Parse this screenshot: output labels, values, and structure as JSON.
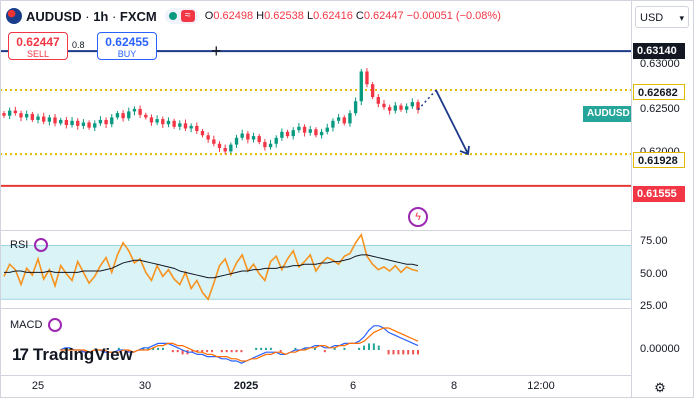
{
  "header": {
    "symbol": "AUDUSD",
    "interval": "1h",
    "exchange": "FXCM",
    "ohlc": {
      "o_label": "O",
      "o": "0.62498",
      "h_label": "H",
      "h": "0.62538",
      "l_label": "L",
      "l": "0.62416",
      "c_label": "C",
      "c": "0.62447",
      "change": "−0.00051 (−0.08%)"
    }
  },
  "trade": {
    "sell_price": "0.62447",
    "sell_label": "SELL",
    "buy_price": "0.62455",
    "buy_label": "BUY",
    "spread": "0.8"
  },
  "currency": "USD",
  "colors": {
    "up": "#089981",
    "down": "#f23645",
    "blue_line": "#1e3a8a",
    "gold": "#e5b800",
    "red_line": "#e53935",
    "axis_blue": "#2962ff",
    "teal_tag": "#26a69a",
    "rsi": "#f7931e",
    "macd": "#2962ff",
    "signal": "#ff6d00"
  },
  "price_axis": {
    "ticks": [
      "0.63000",
      "0.62500",
      "0.62000"
    ],
    "tags": [
      {
        "value": "0.63140",
        "kind": "line"
      },
      {
        "value": "0.62682",
        "kind": "gold"
      },
      {
        "value": "AUDUSD",
        "kind": "symbol"
      },
      {
        "value": "0.61928",
        "kind": "gold"
      },
      {
        "value": "0.61555",
        "kind": "red"
      }
    ]
  },
  "time_axis": {
    "ticks": [
      "25",
      "30",
      "2025",
      "6",
      "8",
      "12:00"
    ]
  },
  "rsi": {
    "label": "RSI",
    "ticks": [
      "75.00",
      "50.00",
      "25.00"
    ]
  },
  "macd": {
    "label": "MACD",
    "ticks": [
      "0.00000"
    ]
  },
  "brand": "TradingView",
  "chart_data": {
    "type": "candlestick",
    "symbol": "AUDUSD",
    "timeframe": "1h",
    "ylim": [
      0.615,
      0.6325
    ],
    "levels": [
      {
        "price": 0.6314,
        "style": "solid",
        "color": "#1e3a8a"
      },
      {
        "price": 0.62682,
        "style": "dotted",
        "color": "#e5b800"
      },
      {
        "price": 0.61928,
        "style": "dotted",
        "color": "#e5b800"
      },
      {
        "price": 0.61555,
        "style": "solid",
        "color": "#e53935"
      }
    ],
    "close_path": [
      0.6238,
      0.6244,
      0.6241,
      0.6236,
      0.624,
      0.6233,
      0.6237,
      0.6231,
      0.6236,
      0.6229,
      0.6233,
      0.6227,
      0.6232,
      0.6226,
      0.623,
      0.6224,
      0.6229,
      0.6233,
      0.6228,
      0.6236,
      0.6241,
      0.6235,
      0.6243,
      0.6246,
      0.6239,
      0.6236,
      0.623,
      0.6234,
      0.6228,
      0.6232,
      0.6225,
      0.6229,
      0.6223,
      0.6226,
      0.622,
      0.6215,
      0.621,
      0.6205,
      0.62,
      0.6196,
      0.6204,
      0.6212,
      0.6217,
      0.621,
      0.6214,
      0.6207,
      0.6201,
      0.6205,
      0.6212,
      0.6219,
      0.6214,
      0.6221,
      0.6225,
      0.6218,
      0.6222,
      0.6215,
      0.6219,
      0.6224,
      0.6232,
      0.6236,
      0.6229,
      0.6241,
      0.6255,
      0.629,
      0.6275,
      0.626,
      0.6252,
      0.6248,
      0.6244,
      0.625,
      0.6245,
      0.6249,
      0.6254,
      0.6245
    ],
    "projection": [
      {
        "from": 0.6245,
        "to": 0.6268,
        "style": "dotted"
      },
      {
        "from": 0.6268,
        "to": 0.6193,
        "style": "arrow"
      }
    ],
    "rsi_ylim": [
      25,
      80
    ],
    "rsi_levels": [
      70,
      30
    ],
    "rsi_values": [
      47,
      56,
      52,
      41,
      53,
      48,
      60,
      45,
      52,
      40,
      55,
      49,
      44,
      58,
      50,
      42,
      47,
      55,
      61,
      50,
      63,
      72,
      66,
      57,
      60,
      50,
      44,
      55,
      47,
      52,
      45,
      41,
      50,
      38,
      44,
      35,
      30,
      42,
      55,
      60,
      48,
      57,
      63,
      51,
      56,
      49,
      44,
      58,
      62,
      52,
      60,
      66,
      54,
      58,
      63,
      51,
      57,
      61,
      59,
      56,
      62,
      64,
      72,
      78,
      62,
      56,
      52,
      54,
      51,
      55,
      50,
      54,
      52,
      51
    ],
    "rsi_ma": [
      50,
      50,
      51,
      51,
      50,
      50,
      50,
      50,
      51,
      50,
      50,
      50,
      50,
      50,
      51,
      51,
      51,
      51,
      52,
      53,
      55,
      57,
      58,
      59,
      59,
      58,
      57,
      56,
      55,
      54,
      53,
      51,
      50,
      49,
      48,
      47,
      46,
      46,
      47,
      48,
      49,
      50,
      51,
      51,
      52,
      52,
      53,
      53,
      53,
      54,
      54,
      55,
      55,
      56,
      56,
      56,
      57,
      57,
      58,
      58,
      59,
      60,
      62,
      63,
      63,
      62,
      61,
      60,
      59,
      58,
      57,
      56,
      56,
      55
    ],
    "macd_values": [
      0,
      1,
      1,
      0,
      0,
      -1,
      -1,
      0,
      0,
      -1,
      -1,
      -1,
      0,
      0,
      -1,
      -1,
      0,
      1,
      1,
      2,
      3,
      3,
      3,
      2,
      1,
      0,
      -1,
      -1,
      -2,
      -2,
      -3,
      -3,
      -3,
      -4,
      -4,
      -5,
      -5,
      -6,
      -5,
      -4,
      -3,
      -2,
      -1,
      -1,
      -1,
      -2,
      -2,
      -1,
      0,
      0,
      1,
      1,
      2,
      2,
      1,
      1,
      2,
      2,
      3,
      3,
      3,
      4,
      6,
      9,
      11,
      11,
      10,
      8,
      7,
      6,
      5,
      4,
      3,
      2
    ],
    "macd_signal": [
      0,
      0,
      0,
      0,
      0,
      0,
      -1,
      0,
      0,
      0,
      -1,
      -1,
      -1,
      0,
      0,
      -1,
      0,
      0,
      0,
      1,
      2,
      2,
      3,
      3,
      2,
      2,
      1,
      0,
      -1,
      -1,
      -2,
      -2,
      -3,
      -3,
      -3,
      -4,
      -4,
      -5,
      -5,
      -4,
      -4,
      -3,
      -2,
      -2,
      -1,
      -1,
      -2,
      -1,
      -1,
      0,
      0,
      1,
      1,
      2,
      2,
      1,
      1,
      2,
      2,
      3,
      3,
      3,
      4,
      6,
      8,
      9,
      10,
      10,
      9,
      8,
      7,
      6,
      5,
      4
    ],
    "time_ticks": [
      "25",
      "30",
      "2025",
      "6",
      "8",
      "12:00"
    ]
  }
}
